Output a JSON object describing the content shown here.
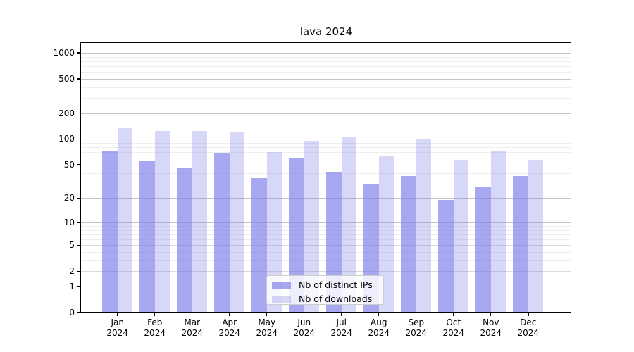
{
  "chart_data": {
    "type": "bar",
    "title": "lava 2024",
    "categories": [
      "Jan",
      "Feb",
      "Mar",
      "Apr",
      "May",
      "Jun",
      "Jul",
      "Aug",
      "Sep",
      "Oct",
      "Nov",
      "Dec"
    ],
    "x_year_label": "2024",
    "series": [
      {
        "name": "Nb of distinct IPs",
        "color": "rgba(123,123,233,0.66)",
        "values": [
          73,
          56,
          45,
          69,
          35,
          59,
          41,
          29,
          37,
          19,
          27,
          37
        ]
      },
      {
        "name": "Nb of downloads",
        "color": "rgba(123,123,233,0.30)",
        "values": [
          133,
          125,
          124,
          120,
          71,
          95,
          105,
          63,
          99,
          57,
          72,
          57
        ]
      }
    ],
    "y_axis": {
      "ticks": [
        1000,
        500,
        200,
        100,
        50,
        20,
        10,
        5,
        2,
        1,
        0
      ],
      "minor_ticks": [
        3,
        4,
        6,
        7,
        8,
        9,
        30,
        40,
        60,
        70,
        80,
        90,
        300,
        400,
        600,
        700,
        800,
        900
      ],
      "scale": "log10(value+1)",
      "range": [
        0,
        1300
      ]
    },
    "grid": true,
    "legend_position": "lower center"
  },
  "colors": {
    "bar_base": "#7b7be9",
    "grid_major": "#c3c3c3",
    "grid_semi": "#dadada",
    "grid_minor": "#eeeeee",
    "spine": "#000000",
    "text": "#000000",
    "legend_border": "#cccccc"
  }
}
